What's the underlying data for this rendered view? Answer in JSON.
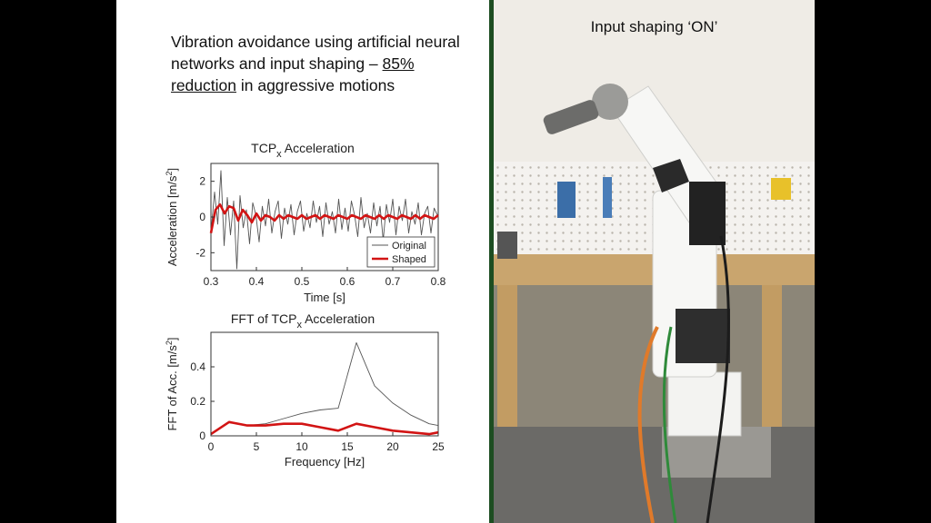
{
  "heading": {
    "line1": "Vibration avoidance using artificial neural networks and input shaping – ",
    "underlined": "85% reduction",
    "line2": " in aggressive motions"
  },
  "photo": {
    "caption": "Input shaping ‘ON’"
  },
  "colors": {
    "original": "#555555",
    "shaped": "#d21414",
    "slide_background": "#ffffff",
    "photo_border": "#1d4d21"
  },
  "chart_data": [
    {
      "type": "line",
      "title_main": "TCP",
      "title_sub": "x",
      "title_rest": " Acceleration",
      "xlabel": "Time [s]",
      "ylabel_main": "Acceleration [m/s",
      "ylabel_sup": "2",
      "ylabel_end": "]",
      "xlim": [
        0.3,
        0.8
      ],
      "ylim": [
        -3,
        3
      ],
      "xticks": [
        0.3,
        0.4,
        0.5,
        0.6,
        0.7,
        0.8
      ],
      "xtick_labels": [
        "0.3",
        "0.4",
        "0.5",
        "0.6",
        "0.7",
        "0.8"
      ],
      "yticks": [
        -2,
        0,
        2
      ],
      "ytick_labels": [
        "-2",
        "0",
        "2"
      ],
      "grid": false,
      "legend_position": "bottom-right",
      "series": [
        {
          "name": "Original",
          "x": [
            0.3,
            0.308,
            0.315,
            0.322,
            0.329,
            0.336,
            0.343,
            0.35,
            0.357,
            0.364,
            0.371,
            0.378,
            0.385,
            0.392,
            0.399,
            0.406,
            0.413,
            0.42,
            0.427,
            0.434,
            0.441,
            0.448,
            0.455,
            0.462,
            0.469,
            0.476,
            0.483,
            0.49,
            0.497,
            0.504,
            0.511,
            0.518,
            0.525,
            0.532,
            0.539,
            0.546,
            0.553,
            0.56,
            0.567,
            0.574,
            0.581,
            0.588,
            0.595,
            0.602,
            0.609,
            0.616,
            0.623,
            0.63,
            0.637,
            0.644,
            0.651,
            0.658,
            0.665,
            0.672,
            0.679,
            0.686,
            0.693,
            0.7,
            0.707,
            0.714,
            0.721,
            0.728,
            0.735,
            0.742,
            0.749,
            0.756,
            0.763,
            0.77,
            0.777,
            0.784,
            0.791,
            0.8
          ],
          "values": [
            -0.9,
            1.4,
            -0.4,
            2.6,
            -1.6,
            1.1,
            -1.0,
            0.9,
            -2.9,
            1.2,
            -0.6,
            0.4,
            -1.5,
            0.8,
            0.1,
            -1.4,
            0.6,
            -0.5,
            1.0,
            -0.9,
            0.3,
            0.9,
            -1.2,
            0.5,
            -0.4,
            0.7,
            -1.0,
            0.3,
            0.9,
            -0.8,
            0.2,
            -0.6,
            0.9,
            -0.3,
            0.6,
            -1.1,
            0.8,
            -0.4,
            0.3,
            -0.9,
            1.0,
            -0.7,
            0.5,
            -0.8,
            0.9,
            0.1,
            -1.1,
            1.1,
            -0.6,
            0.2,
            -0.9,
            0.8,
            -0.5,
            0.6,
            -1.3,
            0.7,
            -0.3,
            1.0,
            -1.0,
            0.6,
            -0.2,
            1.0,
            -0.9,
            0.3,
            -0.4,
            0.8,
            -1.0,
            0.2,
            0.6,
            -0.9,
            0.5,
            0.0
          ]
        },
        {
          "name": "Shaped",
          "x": [
            0.3,
            0.31,
            0.32,
            0.33,
            0.34,
            0.35,
            0.36,
            0.37,
            0.38,
            0.39,
            0.4,
            0.41,
            0.42,
            0.43,
            0.44,
            0.45,
            0.46,
            0.47,
            0.48,
            0.49,
            0.5,
            0.51,
            0.52,
            0.53,
            0.54,
            0.55,
            0.56,
            0.57,
            0.58,
            0.59,
            0.6,
            0.61,
            0.62,
            0.63,
            0.64,
            0.65,
            0.66,
            0.67,
            0.68,
            0.69,
            0.7,
            0.71,
            0.72,
            0.73,
            0.74,
            0.75,
            0.76,
            0.77,
            0.78,
            0.79,
            0.8
          ],
          "values": [
            -0.9,
            0.4,
            0.7,
            0.2,
            0.6,
            0.5,
            -0.2,
            0.4,
            0.1,
            -0.3,
            0.2,
            -0.2,
            0.1,
            0.0,
            -0.2,
            0.1,
            -0.1,
            0.1,
            0.0,
            -0.1,
            0.1,
            -0.1,
            0.0,
            0.1,
            -0.1,
            0.1,
            0.0,
            -0.1,
            0.1,
            0.0,
            -0.1,
            0.1,
            0.0,
            -0.1,
            0.1,
            0.0,
            -0.1,
            0.1,
            -0.1,
            0.1,
            0.0,
            -0.1,
            0.1,
            0.0,
            -0.1,
            0.1,
            -0.1,
            0.1,
            0.0,
            -0.1,
            0.1
          ]
        }
      ]
    },
    {
      "type": "line",
      "title_main": "FFT of TCP",
      "title_sub": "x",
      "title_rest": " Acceleration",
      "xlabel": "Frequency [Hz]",
      "ylabel_main": "FFT of Acc. [m/s",
      "ylabel_sup": "2",
      "ylabel_end": "]",
      "xlim": [
        0,
        25
      ],
      "ylim": [
        0,
        0.6
      ],
      "xticks": [
        0,
        5,
        10,
        15,
        20,
        25
      ],
      "xtick_labels": [
        "0",
        "5",
        "10",
        "15",
        "20",
        "25"
      ],
      "yticks": [
        0,
        0.2,
        0.4
      ],
      "ytick_labels": [
        "0",
        "0.2",
        "0.4"
      ],
      "grid": false,
      "series": [
        {
          "name": "Original",
          "x": [
            0,
            2,
            4,
            6,
            8,
            10,
            12,
            14,
            16,
            18,
            20,
            22,
            24,
            25
          ],
          "values": [
            0.01,
            0.08,
            0.06,
            0.07,
            0.1,
            0.13,
            0.15,
            0.16,
            0.54,
            0.29,
            0.19,
            0.12,
            0.07,
            0.06
          ]
        },
        {
          "name": "Shaped",
          "x": [
            0,
            2,
            4,
            6,
            8,
            10,
            12,
            14,
            16,
            18,
            20,
            22,
            24,
            25
          ],
          "values": [
            0.01,
            0.08,
            0.06,
            0.06,
            0.07,
            0.07,
            0.05,
            0.03,
            0.07,
            0.05,
            0.03,
            0.02,
            0.01,
            0.02
          ]
        }
      ]
    }
  ]
}
